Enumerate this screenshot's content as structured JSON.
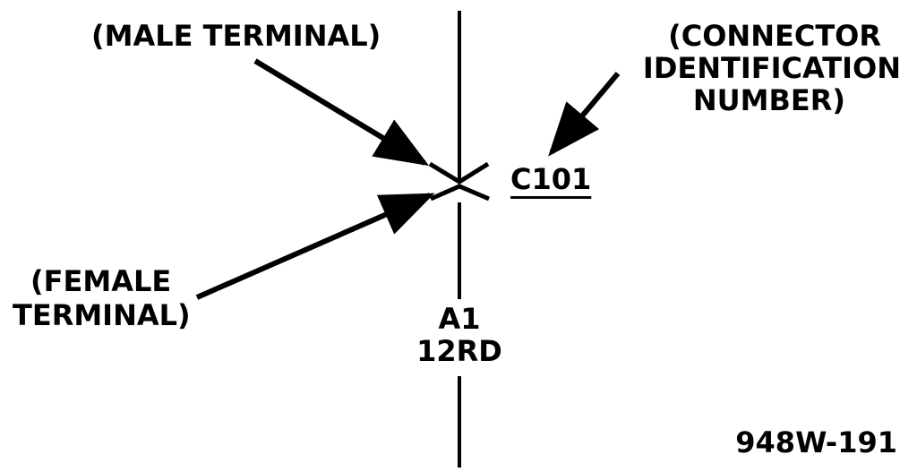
{
  "labels": {
    "male_terminal": "(MALE TERMINAL)",
    "connector_id_line1": "(CONNECTOR",
    "connector_id_line2": "IDENTIFICATION",
    "connector_id_line3": "NUMBER)",
    "connector_number": "C101",
    "female_line1": "(FEMALE",
    "female_line2": "TERMINAL)",
    "circuit_id": "A1",
    "wire_gauge_color": "12RD",
    "figure_number": "948W-191"
  },
  "colors": {
    "ink": "#000000",
    "background": "#ffffff"
  }
}
